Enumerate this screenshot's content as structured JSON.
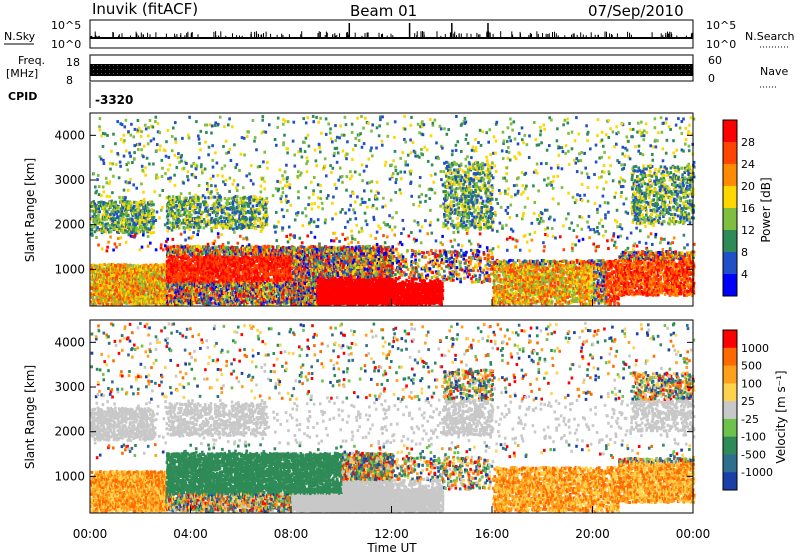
{
  "header": {
    "station": "Inuvik (fitACF)",
    "beam": "Beam 01",
    "date": "07/Sep/2010"
  },
  "summary": {
    "nsky_label": "N.Sky",
    "nsky_ticks": [
      "10^5",
      "10^0"
    ],
    "nsearch_label": "N.Search",
    "nsearch_ticks": [
      "10^5",
      "10^0"
    ],
    "freq_label_1": "Freq.",
    "freq_label_2": "[MHz]",
    "freq_ticks": [
      "18",
      "8"
    ],
    "nave_label": "Nave",
    "nave_ticks": [
      "60",
      "0"
    ],
    "cpid_label": "CPID",
    "cpid_value": "-3320"
  },
  "axes": {
    "ylabel": "Slant Range [km]",
    "xlabel": "Time UT",
    "y_ticks": [
      "1000",
      "2000",
      "3000",
      "4000"
    ],
    "x_ticks": [
      "00:00",
      "04:00",
      "08:00",
      "12:00",
      "16:00",
      "20:00",
      "00:00"
    ]
  },
  "chart_data": [
    {
      "type": "heatmap",
      "name": "power",
      "colorbar_label": "Power [dB]",
      "colorbar_ticks": [
        "4",
        "8",
        "12",
        "16",
        "20",
        "24",
        "28"
      ],
      "colorbar_colors": [
        "#0000ff",
        "#2050c8",
        "#2e8b57",
        "#7fbf3f",
        "#ffd700",
        "#ff8c00",
        "#ff4500",
        "#ff0000"
      ],
      "x_range_hours": [
        0,
        24
      ],
      "y_range_km": [
        180,
        4500
      ]
    },
    {
      "type": "heatmap",
      "name": "velocity",
      "colorbar_label": "Velocity [m s⁻¹]",
      "colorbar_ticks": [
        "1000",
        "500",
        "100",
        "25",
        "-25",
        "-100",
        "-500",
        "-1000"
      ],
      "colorbar_colors": [
        "#1a3fa8",
        "#2e6e8e",
        "#2e8b57",
        "#6cc24a",
        "#c8c8c8",
        "#ffd24d",
        "#ff9f1a",
        "#ff6a00",
        "#ff0000"
      ],
      "x_range_hours": [
        0,
        24
      ],
      "y_range_km": [
        180,
        4500
      ]
    }
  ]
}
